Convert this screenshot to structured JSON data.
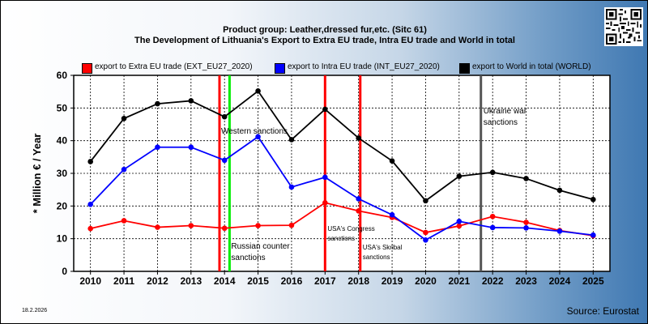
{
  "header": {
    "title_line1": "Product group: Leather,dressed fur,etc. (Sitc 61)",
    "title_line2": "The Development of Lithuania's Export to Extra EU trade, Intra EU trade and World in total"
  },
  "footer": {
    "date": "18.2.2026",
    "source": "Source: Eurostat"
  },
  "chart_data": {
    "type": "line",
    "title": "The Development of Lithuania's Export to Extra EU trade, Intra EU trade and World in total",
    "subtitle": "Product group: Leather,dressed fur,etc. (Sitc 61)",
    "xlabel": "",
    "ylabel": "* Million € / Year",
    "x": [
      2010,
      2011,
      2012,
      2013,
      2014,
      2015,
      2016,
      2017,
      2018,
      2019,
      2020,
      2021,
      2022,
      2023,
      2024,
      2025
    ],
    "ylim": [
      0,
      60
    ],
    "yticks": [
      0,
      10,
      20,
      30,
      40,
      50,
      60
    ],
    "grid": true,
    "legend_position": "top",
    "series": [
      {
        "name": "export to Extra EU trade (EXT_EU27_2020)",
        "color": "#ff0000",
        "values": [
          13.1,
          15.5,
          13.5,
          14.0,
          13.2,
          14.0,
          14.1,
          21.0,
          18.5,
          16.5,
          11.9,
          13.9,
          16.8,
          15.0,
          12.5,
          10.9
        ]
      },
      {
        "name": "export to Intra EU trade (INT_EU27_2020)",
        "color": "#0000ff",
        "values": [
          20.5,
          31.2,
          38.0,
          38.0,
          34.0,
          41.2,
          25.8,
          28.8,
          22.2,
          17.3,
          9.6,
          15.3,
          13.4,
          13.3,
          12.3,
          11.1
        ]
      },
      {
        "name": "export to World in total (WORLD)",
        "color": "#000000",
        "values": [
          33.6,
          46.8,
          51.3,
          52.2,
          47.3,
          55.2,
          40.3,
          49.6,
          40.8,
          33.8,
          21.6,
          29.1,
          30.3,
          28.4,
          24.8,
          22.0
        ]
      }
    ],
    "annotations": [
      {
        "id": "western",
        "text_lines": [
          "Western sanctions"
        ],
        "x": 2013.85,
        "color": "#ff0000"
      },
      {
        "id": "russian",
        "text_lines": [
          "Russian counter",
          "sanctions"
        ],
        "x": 2014.15,
        "color": "#00ee00"
      },
      {
        "id": "congress",
        "text_lines": [
          "USA's Congress",
          "sanctions"
        ],
        "x": 2017.0,
        "color": "#ff0000"
      },
      {
        "id": "skripal",
        "text_lines": [
          "USA's Skribal",
          "sanctions"
        ],
        "x": 2018.05,
        "color": "#ff0000"
      },
      {
        "id": "ukraine",
        "text_lines": [
          "Ukraine war",
          "sanctions"
        ],
        "x": 2021.65,
        "color": "#555555"
      }
    ]
  }
}
